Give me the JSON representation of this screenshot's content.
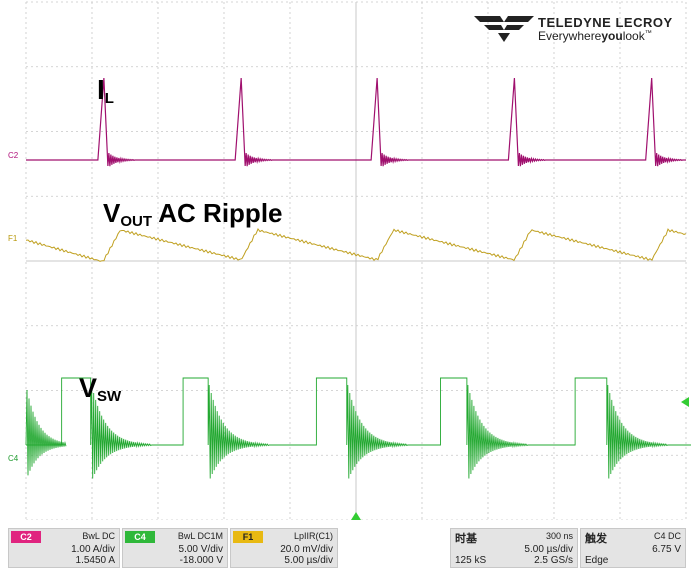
{
  "brand": {
    "name": "TELEDYNE LECROY",
    "tagline_prefix": "Everywhere",
    "tagline_bold": "you",
    "tagline_suffix": "look",
    "tagline_mark": "™"
  },
  "labels": {
    "il_main": "I",
    "il_sub": "L",
    "vout_main": "V",
    "vout_sub": "OUT",
    "vout_rest": " AC Ripple",
    "vsw_main": "V",
    "vsw_sub": "SW"
  },
  "channel_markers": {
    "c2": "C2",
    "f1": "F1",
    "c4": "C4"
  },
  "colors": {
    "grid": "#c8c8c8",
    "il_trace": "#a0106e",
    "vout_trace": "#c0a020",
    "vsw_trace": "#22a830",
    "trigger": "#33cc33"
  },
  "info": {
    "c2": {
      "tag": "C2",
      "mode": "BwL DC",
      "scale": "1.00 A/div",
      "offset": "1.5450 A"
    },
    "c4": {
      "tag": "C4",
      "mode": "BwL DC1M",
      "scale": "5.00 V/div",
      "offset": "-18.000 V"
    },
    "f1": {
      "tag": "F1",
      "mode": "LpIIR(C1)",
      "scale": "20.0 mV/div",
      "offset": "5.00 µs/div"
    },
    "timebase": {
      "title": "时基",
      "delay": "300 ns",
      "scale": "5.00 µs/div",
      "samples": "125 kS",
      "rate": "2.5 GS/s"
    },
    "trigger": {
      "title": "触发",
      "source": "C4 DC",
      "level": "6.75 V",
      "type": "Edge"
    }
  },
  "timing": {
    "il_peaks_us": [
      5.9,
      16.3,
      26.6,
      37.0,
      47.4
    ],
    "vsw_on_start_us": [
      2.7,
      11.9,
      22.0,
      31.4,
      41.6,
      51.0
    ],
    "vsw_on_end_us": [
      4.9,
      13.8,
      24.3,
      33.4,
      44.0,
      53.2
    ]
  }
}
